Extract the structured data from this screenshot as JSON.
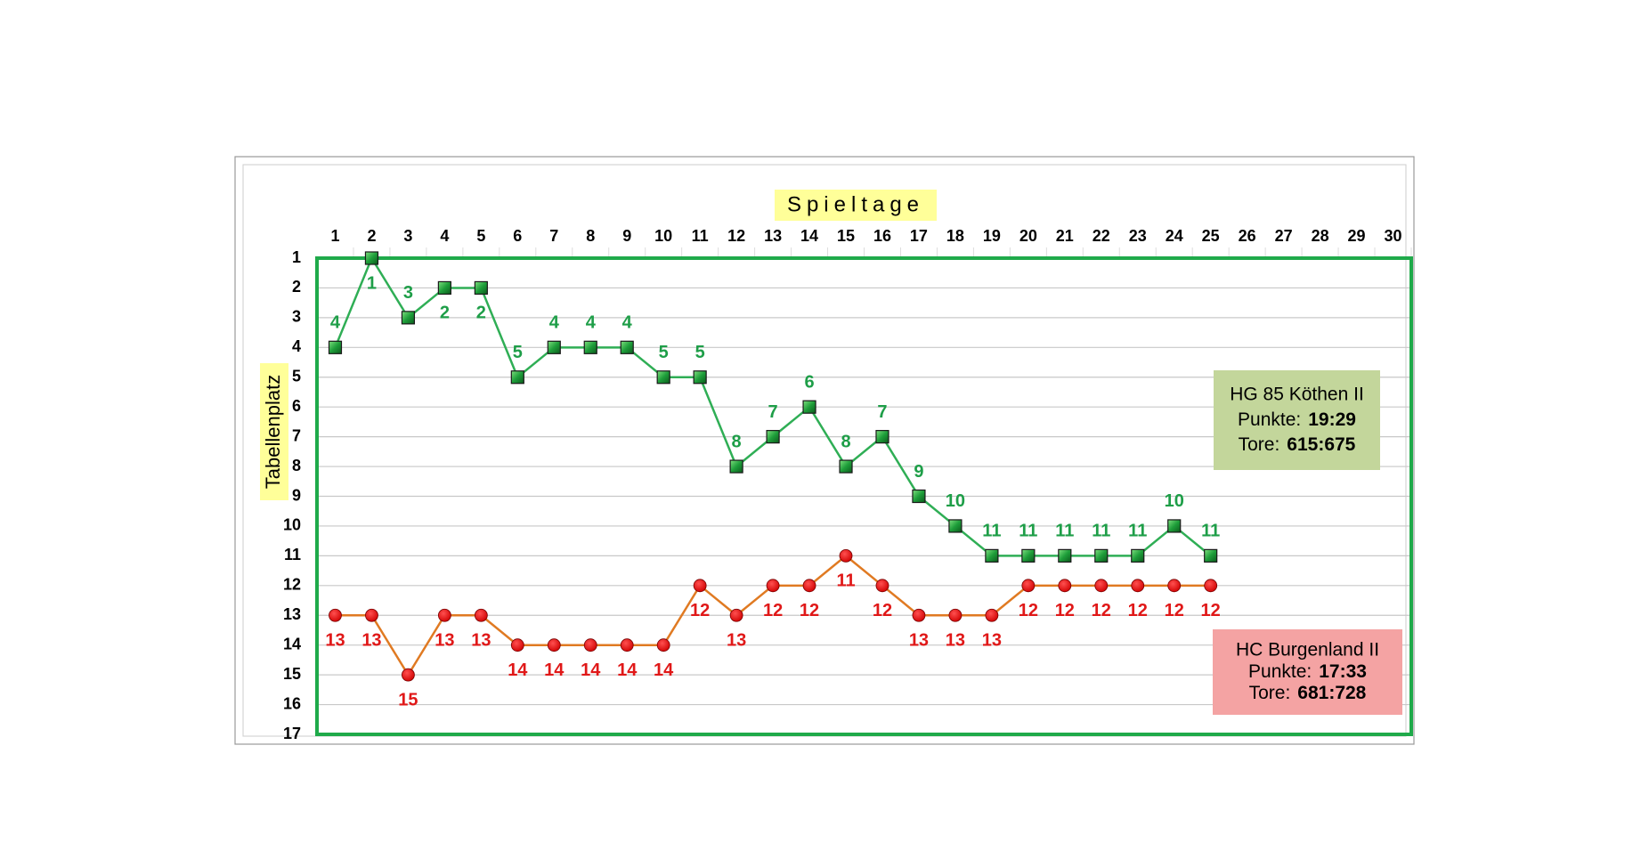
{
  "chart_data": {
    "type": "line",
    "title": "Spieltage",
    "y_label": "Tabellenplatz",
    "xlim": [
      0.5,
      30.5
    ],
    "xticks": [
      1,
      2,
      3,
      4,
      5,
      6,
      7,
      8,
      9,
      10,
      11,
      12,
      13,
      14,
      15,
      16,
      17,
      18,
      19,
      20,
      21,
      22,
      23,
      24,
      25,
      26,
      27,
      28,
      29,
      30
    ],
    "ylim": [
      17,
      1
    ],
    "yticks": [
      1,
      2,
      3,
      4,
      5,
      6,
      7,
      8,
      9,
      10,
      11,
      12,
      13,
      14,
      15,
      16,
      17
    ],
    "grid": true,
    "x": [
      1,
      2,
      3,
      4,
      5,
      6,
      7,
      8,
      9,
      10,
      11,
      12,
      13,
      14,
      15,
      16,
      17,
      18,
      19,
      20,
      21,
      22,
      23,
      24,
      25
    ],
    "series": [
      {
        "name": "HG 85 Köthen II",
        "color": "#2fae55",
        "marker": "square",
        "label_color": "#1e9e48",
        "box_color": "#c3d69b",
        "points_label": "Punkte:",
        "points": "19:29",
        "goals_label": "Tore:",
        "goals": "615:675",
        "values": [
          4,
          1,
          3,
          2,
          2,
          5,
          4,
          4,
          4,
          5,
          5,
          8,
          7,
          6,
          8,
          7,
          9,
          10,
          11,
          11,
          11,
          11,
          11,
          10,
          11
        ]
      },
      {
        "name": "HC Burgenland II",
        "color": "#e07a22",
        "marker": "circle",
        "label_color": "#e01818",
        "box_color": "#f4a3a3",
        "points_label": "Punkte:",
        "points": "17:33",
        "goals_label": "Tore:",
        "goals": "681:728",
        "values": [
          13,
          13,
          15,
          13,
          13,
          14,
          14,
          14,
          14,
          14,
          12,
          13,
          12,
          12,
          11,
          12,
          13,
          13,
          13,
          12,
          12,
          12,
          12,
          12,
          12
        ]
      }
    ]
  }
}
